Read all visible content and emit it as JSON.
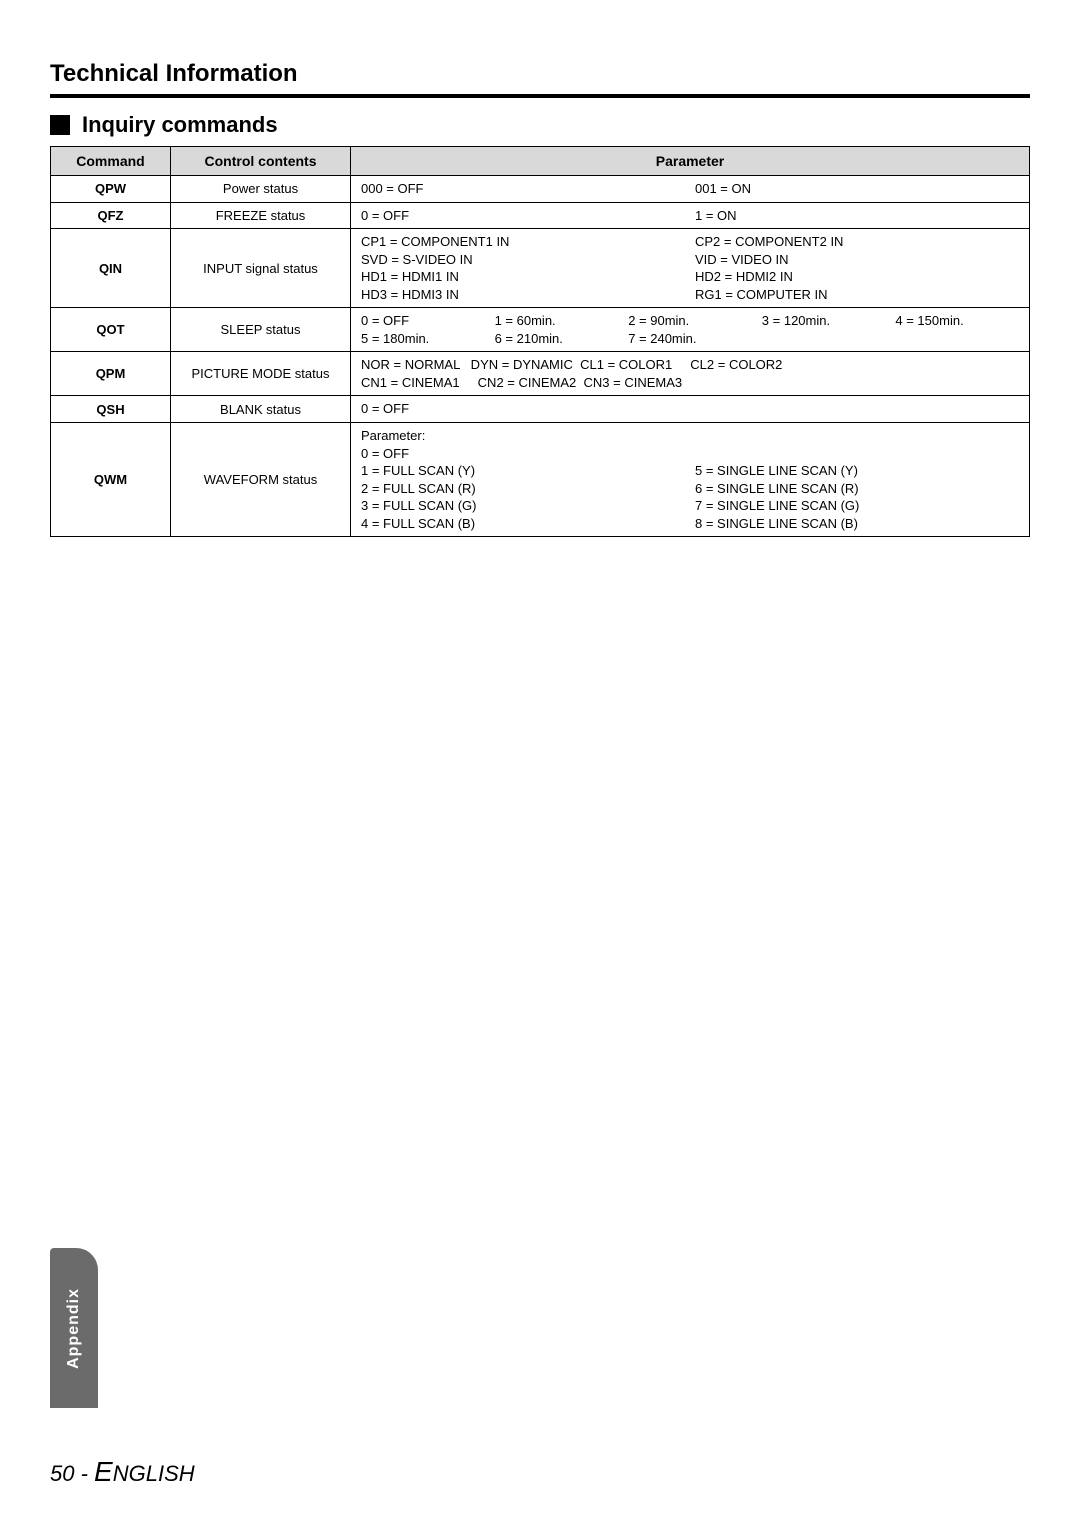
{
  "headings": {
    "h1": "Technical Information",
    "h2": "Inquiry commands"
  },
  "table": {
    "headers": {
      "c1": "Command",
      "c2": "Control contents",
      "c3": "Parameter"
    },
    "rows": [
      {
        "cmd": "QPW",
        "ctrl": "Power status",
        "param": {
          "left": "000 = OFF",
          "right": "001 = ON"
        }
      },
      {
        "cmd": "QFZ",
        "ctrl": "FREEZE status",
        "param": {
          "left": "0 = OFF",
          "right": "1 = ON"
        }
      },
      {
        "cmd": "QIN",
        "ctrl": "INPUT signal status",
        "param": {
          "left": "CP1 = COMPONENT1 IN\nSVD = S-VIDEO IN\nHD1 = HDMI1 IN\nHD3 = HDMI3 IN",
          "right": "CP2 = COMPONENT2 IN\nVID = VIDEO IN\nHD2 = HDMI2 IN\nRG1 = COMPUTER IN"
        }
      },
      {
        "cmd": "QOT",
        "ctrl": "SLEEP status",
        "param": {
          "c1": "0 = OFF\n5 = 180min.",
          "c2": "1 = 60min.\n6 = 210min.",
          "c3": "2 = 90min.\n7 = 240min.",
          "c4": "3 = 120min.",
          "c5": "4 = 150min."
        }
      },
      {
        "cmd": "QPM",
        "ctrl": "PICTURE MODE status",
        "param": {
          "line1": "NOR = NORMAL   DYN = DYNAMIC  CL1 = COLOR1     CL2 = COLOR2",
          "line2": "CN1 = CINEMA1     CN2 = CINEMA2  CN3 = CINEMA3"
        }
      },
      {
        "cmd": "QSH",
        "ctrl": "BLANK status",
        "param": {
          "single": "0 = OFF"
        }
      },
      {
        "cmd": "QWM",
        "ctrl": "WAVEFORM status",
        "param": {
          "left": "Parameter:\n0 = OFF\n1 = FULL SCAN (Y)\n2 = FULL SCAN (R)\n3 = FULL SCAN (G)\n4 = FULL SCAN (B)",
          "right": "\n\n5 = SINGLE LINE SCAN (Y)\n6 = SINGLE LINE SCAN (R)\n7 = SINGLE LINE SCAN (G)\n8 = SINGLE LINE SCAN (B)"
        }
      }
    ]
  },
  "sidebar": "Appendix",
  "footer": {
    "page": "50",
    "dash": " - ",
    "bigE": "E",
    "rest": "NGLISH"
  },
  "colors": {
    "header_bg": "#d9d9d9",
    "sidebar_bg": "#6b6b6b"
  }
}
